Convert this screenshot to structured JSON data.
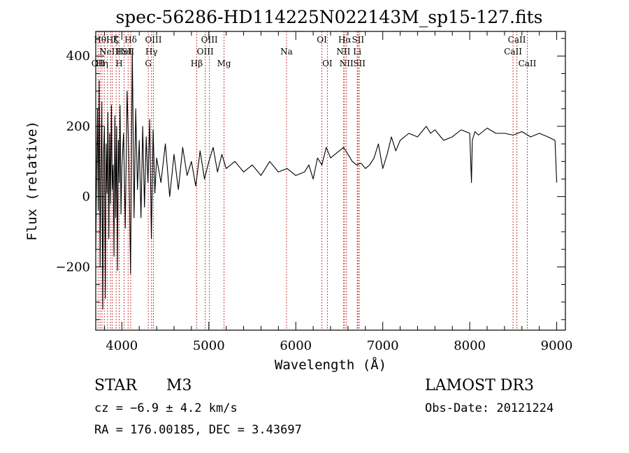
{
  "chart_data": {
    "type": "line",
    "title": "spec-56286-HD114225N022143M_sp15-127.fits",
    "xlabel": "Wavelength (Å)",
    "ylabel": "Flux (relative)",
    "xlim": [
      3700,
      9100
    ],
    "ylim": [
      -380,
      470
    ],
    "xticks": [
      4000,
      5000,
      6000,
      7000,
      8000,
      9000
    ],
    "yticks": [
      -200,
      0,
      200,
      400
    ],
    "xtick_labels": [
      "4000",
      "5000",
      "6000",
      "7000",
      "8000",
      "9000"
    ],
    "ytick_labels": [
      "−200",
      "0",
      "200",
      "400"
    ],
    "series": [
      {
        "name": "flux",
        "x": [
          3700,
          3710,
          3720,
          3730,
          3740,
          3750,
          3760,
          3770,
          3780,
          3790,
          3800,
          3810,
          3820,
          3830,
          3840,
          3850,
          3860,
          3870,
          3880,
          3890,
          3900,
          3910,
          3920,
          3930,
          3940,
          3950,
          3960,
          3970,
          3980,
          3990,
          4000,
          4020,
          4040,
          4060,
          4080,
          4100,
          4120,
          4140,
          4160,
          4180,
          4200,
          4220,
          4240,
          4260,
          4280,
          4300,
          4320,
          4340,
          4360,
          4380,
          4400,
          4450,
          4500,
          4550,
          4600,
          4650,
          4700,
          4750,
          4800,
          4850,
          4900,
          4950,
          5000,
          5050,
          5100,
          5150,
          5200,
          5300,
          5400,
          5500,
          5600,
          5700,
          5800,
          5900,
          6000,
          6100,
          6150,
          6200,
          6250,
          6300,
          6350,
          6400,
          6450,
          6500,
          6550,
          6600,
          6650,
          6700,
          6750,
          6800,
          6850,
          6900,
          6950,
          7000,
          7050,
          7100,
          7150,
          7200,
          7300,
          7400,
          7500,
          7550,
          7600,
          7700,
          7800,
          7900,
          8000,
          8020,
          8030,
          8060,
          8100,
          8200,
          8300,
          8400,
          8500,
          8600,
          8700,
          8800,
          8900,
          8980,
          9000
        ],
        "y": [
          -160,
          60,
          250,
          -40,
          330,
          -200,
          80,
          270,
          -320,
          120,
          200,
          -290,
          150,
          10,
          240,
          -120,
          180,
          -20,
          260,
          20,
          90,
          -170,
          230,
          -60,
          200,
          -210,
          160,
          40,
          260,
          -50,
          80,
          180,
          -90,
          300,
          120,
          -220,
          420,
          -60,
          250,
          20,
          160,
          -60,
          200,
          -30,
          170,
          40,
          220,
          -120,
          190,
          10,
          110,
          40,
          150,
          0,
          120,
          20,
          140,
          60,
          100,
          30,
          130,
          50,
          100,
          140,
          70,
          120,
          80,
          100,
          70,
          90,
          60,
          100,
          70,
          80,
          60,
          70,
          90,
          50,
          110,
          90,
          140,
          110,
          120,
          130,
          140,
          120,
          100,
          90,
          95,
          80,
          90,
          110,
          150,
          80,
          120,
          170,
          130,
          160,
          180,
          170,
          200,
          180,
          190,
          160,
          170,
          190,
          180,
          40,
          160,
          185,
          175,
          195,
          180,
          180,
          175,
          185,
          170,
          180,
          170,
          160,
          40
        ]
      }
    ],
    "line_marks": [
      {
        "w": 3727,
        "label": "OII",
        "row": 2
      },
      {
        "w": 3750,
        "label": "Hθ",
        "row": 0
      },
      {
        "w": 3771,
        "label": "Hη",
        "row": 2
      },
      {
        "w": 3798,
        "label": "",
        "row": 0
      },
      {
        "w": 3835,
        "label": "",
        "row": 0
      },
      {
        "w": 3869,
        "label": "NeIII",
        "row": 1
      },
      {
        "w": 3889,
        "label": "Hζ",
        "row": 0
      },
      {
        "w": 3934,
        "label": "K",
        "row": 0
      },
      {
        "w": 3969,
        "label": "H",
        "row": 2
      },
      {
        "w": 4026,
        "label": "HeI",
        "row": 1
      },
      {
        "w": 4072,
        "label": "SII",
        "row": 1
      },
      {
        "w": 4102,
        "label": "Hδ",
        "row": 0
      },
      {
        "w": 4304,
        "label": "G",
        "row": 2
      },
      {
        "w": 4341,
        "label": "Hγ",
        "row": 1
      },
      {
        "w": 4363,
        "label": "OIII",
        "row": 0
      },
      {
        "w": 4861,
        "label": "Hβ",
        "row": 2
      },
      {
        "w": 4959,
        "label": "OIII",
        "row": 1
      },
      {
        "w": 5007,
        "label": "OIII",
        "row": 0
      },
      {
        "w": 5175,
        "label": "Mg",
        "row": 2
      },
      {
        "w": 5893,
        "label": "Na",
        "row": 1
      },
      {
        "w": 6300,
        "label": "OI",
        "row": 0
      },
      {
        "w": 6363,
        "label": "OI",
        "row": 2
      },
      {
        "w": 6548,
        "label": "NII",
        "row": 1
      },
      {
        "w": 6563,
        "label": "Hα",
        "row": 0
      },
      {
        "w": 6583,
        "label": "NII",
        "row": 2
      },
      {
        "w": 6707,
        "label": "Li",
        "row": 1
      },
      {
        "w": 6716,
        "label": "SII",
        "row": 0
      },
      {
        "w": 6731,
        "label": "SII",
        "row": 2
      },
      {
        "w": 8498,
        "label": "CaII",
        "row": 1
      },
      {
        "w": 8542,
        "label": "CaII",
        "row": 0
      },
      {
        "w": 8662,
        "label": "CaII",
        "row": 2
      }
    ]
  },
  "footer": {
    "class_label": "STAR",
    "subclass": "M3",
    "survey": "LAMOST DR3",
    "redshift_line": "cz = −6.9 ± 4.2 km/s",
    "obs_date_line": "Obs-Date: 20121224",
    "coords_line": "RA = 176.00185, DEC =   3.43697"
  },
  "colors": {
    "spectrum": "#000000",
    "line_mark": "#b40000",
    "axis": "#000000"
  }
}
